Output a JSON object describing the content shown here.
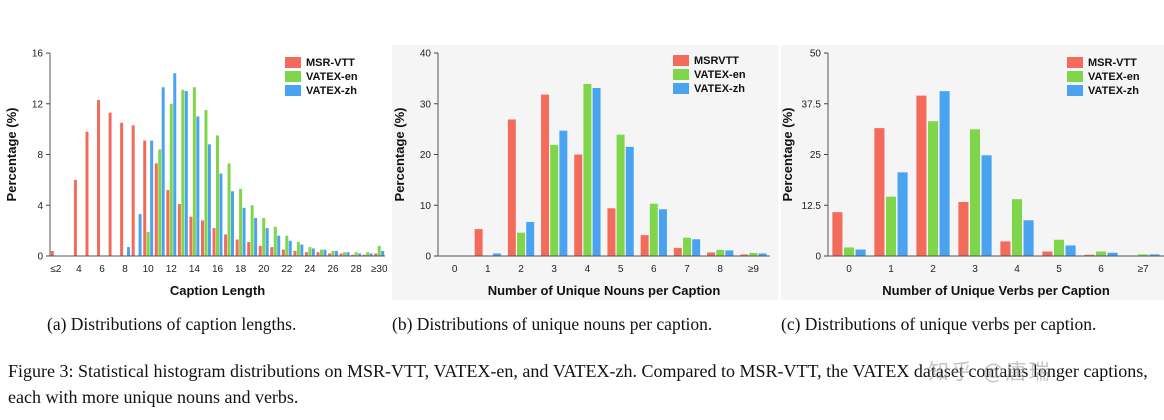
{
  "colors": {
    "msr": "#f26b5b",
    "en": "#7fd64a",
    "zh": "#4aa3f0"
  },
  "figure_caption": {
    "t1": "Figure 3: Statistical histogram distributions on MSR-VTT, ",
    "v1a": "V",
    "v1b": "A",
    "v1c": "T",
    "v1d": "E",
    "v1e": "X",
    "t2": "-en, and ",
    "v2a": "V",
    "v2b": "A",
    "v2c": "T",
    "v2d": "E",
    "v2e": "X",
    "t3": "-zh.  Compared to MSR-VTT, the ",
    "v3a": "V",
    "v3b": "A",
    "v3c": "T",
    "v3d": "E",
    "v3e": "X",
    "t4": " dataset contains longer captions, each with more unique nouns and verbs."
  },
  "watermark": "知乎 @唐瑞",
  "chart_data": [
    {
      "type": "bar",
      "subcaption": "(a) Distributions of caption lengths.",
      "xlabel": "Caption Length",
      "ylabel": "Percentage (%)",
      "ylim": [
        0,
        16
      ],
      "yticks": [
        "0",
        "4",
        "8",
        "12",
        "16"
      ],
      "ytick_values": [
        0,
        4,
        8,
        12,
        16
      ],
      "categories": [
        "2",
        "3",
        "4",
        "5",
        "6",
        "7",
        "8",
        "9",
        "10",
        "11",
        "12",
        "13",
        "14",
        "15",
        "16",
        "17",
        "18",
        "19",
        "20",
        "21",
        "22",
        "23",
        "24",
        "25",
        "26",
        "27",
        "28",
        "29",
        "30"
      ],
      "xtick_labels": [
        "≤2",
        "4",
        "6",
        "8",
        "10",
        "12",
        "14",
        "16",
        "18",
        "20",
        "22",
        "24",
        "26",
        "28",
        "≥30"
      ],
      "xtick_positions": [
        0,
        2,
        4,
        6,
        8,
        10,
        12,
        14,
        16,
        18,
        20,
        22,
        24,
        26,
        28
      ],
      "legend": [
        "MSR-VTT",
        "VATEX-en",
        "VATEX-zh"
      ],
      "series": [
        {
          "name": "MSR-VTT",
          "values": [
            0.4,
            0,
            6.0,
            9.8,
            12.3,
            11.3,
            10.5,
            10.3,
            9.1,
            7.3,
            5.2,
            4.1,
            3.1,
            2.8,
            2.2,
            1.7,
            1.3,
            1.1,
            0.8,
            0.7,
            0.5,
            0.4,
            0.3,
            0.3,
            0.2,
            0.2,
            0.1,
            0.1,
            0.2
          ]
        },
        {
          "name": "VATEX-en",
          "values": [
            0,
            0,
            0,
            0,
            0,
            0,
            0,
            0,
            1.9,
            8.4,
            12.0,
            13.1,
            13.3,
            11.5,
            9.5,
            7.3,
            5.3,
            4.0,
            3.0,
            2.3,
            1.6,
            1.1,
            0.7,
            0.5,
            0.4,
            0.3,
            0.3,
            0.3,
            0.8
          ]
        },
        {
          "name": "VATEX-zh",
          "values": [
            0,
            0,
            0,
            0,
            0,
            0,
            0.7,
            3.3,
            9.1,
            13.3,
            14.4,
            13.0,
            11.0,
            8.8,
            6.5,
            5.1,
            3.8,
            3.0,
            2.2,
            1.6,
            1.2,
            0.9,
            0.6,
            0.5,
            0.4,
            0.3,
            0.2,
            0.2,
            0.4
          ]
        }
      ]
    },
    {
      "type": "bar",
      "subcaption": "(b) Distributions of unique nouns per caption.",
      "xlabel": "Number of Unique Nouns per Caption",
      "ylabel": "Percentage (%)",
      "ylim": [
        0,
        40
      ],
      "yticks": [
        "0",
        "10",
        "20",
        "30",
        "40"
      ],
      "ytick_values": [
        0,
        10,
        20,
        30,
        40
      ],
      "categories": [
        "0",
        "1",
        "2",
        "3",
        "4",
        "5",
        "6",
        "7",
        "8",
        "≥9"
      ],
      "xtick_labels": [
        "0",
        "1",
        "2",
        "3",
        "4",
        "5",
        "6",
        "7",
        "8",
        "≥9"
      ],
      "xtick_positions": [
        0,
        1,
        2,
        3,
        4,
        5,
        6,
        7,
        8,
        9
      ],
      "legend": [
        "MSRVTT",
        "VATEX-en",
        "VATEX-zh"
      ],
      "series": [
        {
          "name": "MSRVTT",
          "values": [
            0.1,
            5.3,
            26.9,
            31.8,
            20.0,
            9.4,
            4.1,
            1.6,
            0.7,
            0.3
          ]
        },
        {
          "name": "VATEX-en",
          "values": [
            0,
            0.1,
            4.6,
            21.9,
            33.9,
            23.9,
            10.3,
            3.6,
            1.2,
            0.6
          ]
        },
        {
          "name": "VATEX-zh",
          "values": [
            0,
            0.5,
            6.7,
            24.7,
            33.1,
            21.5,
            9.2,
            3.3,
            1.1,
            0.5
          ]
        }
      ]
    },
    {
      "type": "bar",
      "subcaption": "(c) Distributions of unique verbs per caption.",
      "xlabel": "Number of Unique Verbs per Caption",
      "ylabel": "Percentage (%)",
      "ylim": [
        0,
        50
      ],
      "yticks": [
        "0",
        "12.5",
        "25",
        "37.5",
        "50"
      ],
      "ytick_values": [
        0,
        12.5,
        25,
        37.5,
        50
      ],
      "categories": [
        "0",
        "1",
        "2",
        "3",
        "4",
        "5",
        "6",
        "≥7"
      ],
      "xtick_labels": [
        "0",
        "1",
        "2",
        "3",
        "4",
        "5",
        "6",
        "≥7"
      ],
      "xtick_positions": [
        0,
        1,
        2,
        3,
        4,
        5,
        6,
        7
      ],
      "legend": [
        "MSR-VTT",
        "VATEX-en",
        "VATEX-zh"
      ],
      "series": [
        {
          "name": "MSR-VTT",
          "values": [
            10.8,
            31.5,
            39.5,
            13.3,
            3.6,
            1.1,
            0.3,
            0.1
          ]
        },
        {
          "name": "VATEX-en",
          "values": [
            2.1,
            14.6,
            33.2,
            31.2,
            14.0,
            4.0,
            1.1,
            0.4
          ]
        },
        {
          "name": "VATEX-zh",
          "values": [
            1.6,
            20.6,
            40.6,
            24.8,
            8.8,
            2.6,
            0.8,
            0.4
          ]
        }
      ]
    }
  ]
}
